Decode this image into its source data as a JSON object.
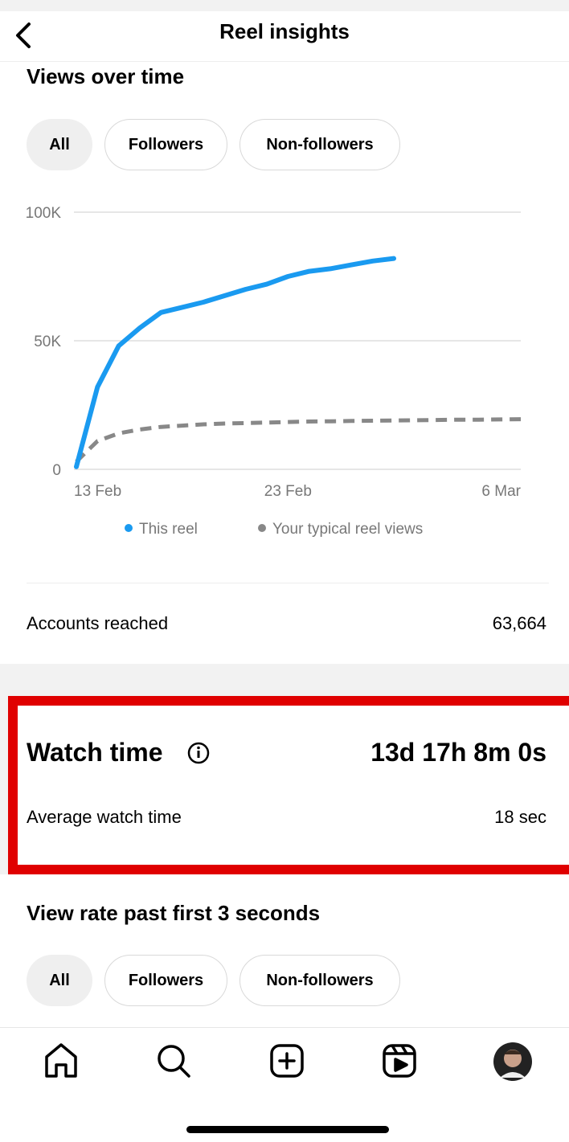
{
  "header": {
    "title": "Reel insights"
  },
  "views": {
    "title": "Views over time",
    "filters": [
      "All",
      "Followers",
      "Non-followers"
    ],
    "chart_data": {
      "type": "line",
      "x": [
        "13 Feb",
        null,
        null,
        null,
        null,
        null,
        null,
        null,
        null,
        null,
        "23 Feb",
        null,
        null,
        null,
        null,
        null,
        null,
        null,
        null,
        null,
        null,
        "6 Mar"
      ],
      "series": [
        {
          "name": "This reel",
          "color": "#1a9af0",
          "values": [
            1000,
            32000,
            48000,
            55000,
            61000,
            63000,
            65000,
            67500,
            70000,
            72000,
            75000,
            77000,
            78000,
            79500,
            81000,
            82000,
            null,
            null,
            null,
            null,
            null,
            null
          ]
        },
        {
          "name": "Your typical reel views",
          "color": "#888888",
          "dashed": true,
          "values": [
            3000,
            11000,
            14000,
            15500,
            16500,
            17000,
            17500,
            17800,
            18000,
            18200,
            18400,
            18600,
            18700,
            18800,
            18900,
            19000,
            19100,
            19200,
            19300,
            19300,
            19400,
            19500
          ]
        }
      ],
      "ylim": [
        0,
        100000
      ],
      "yticks": [
        0,
        {
          "value": 50000,
          "label": "50K"
        },
        {
          "value": 100000,
          "label": "100K"
        }
      ],
      "grid": true
    },
    "accounts_reached": {
      "label": "Accounts reached",
      "value": "63,664"
    }
  },
  "watch_time": {
    "title": "Watch time",
    "total": "13d 17h 8m 0s",
    "average_label": "Average watch time",
    "average_value": "18 sec"
  },
  "view_rate": {
    "title": "View rate past first 3 seconds",
    "filters": [
      "All",
      "Followers",
      "Non-followers"
    ]
  }
}
